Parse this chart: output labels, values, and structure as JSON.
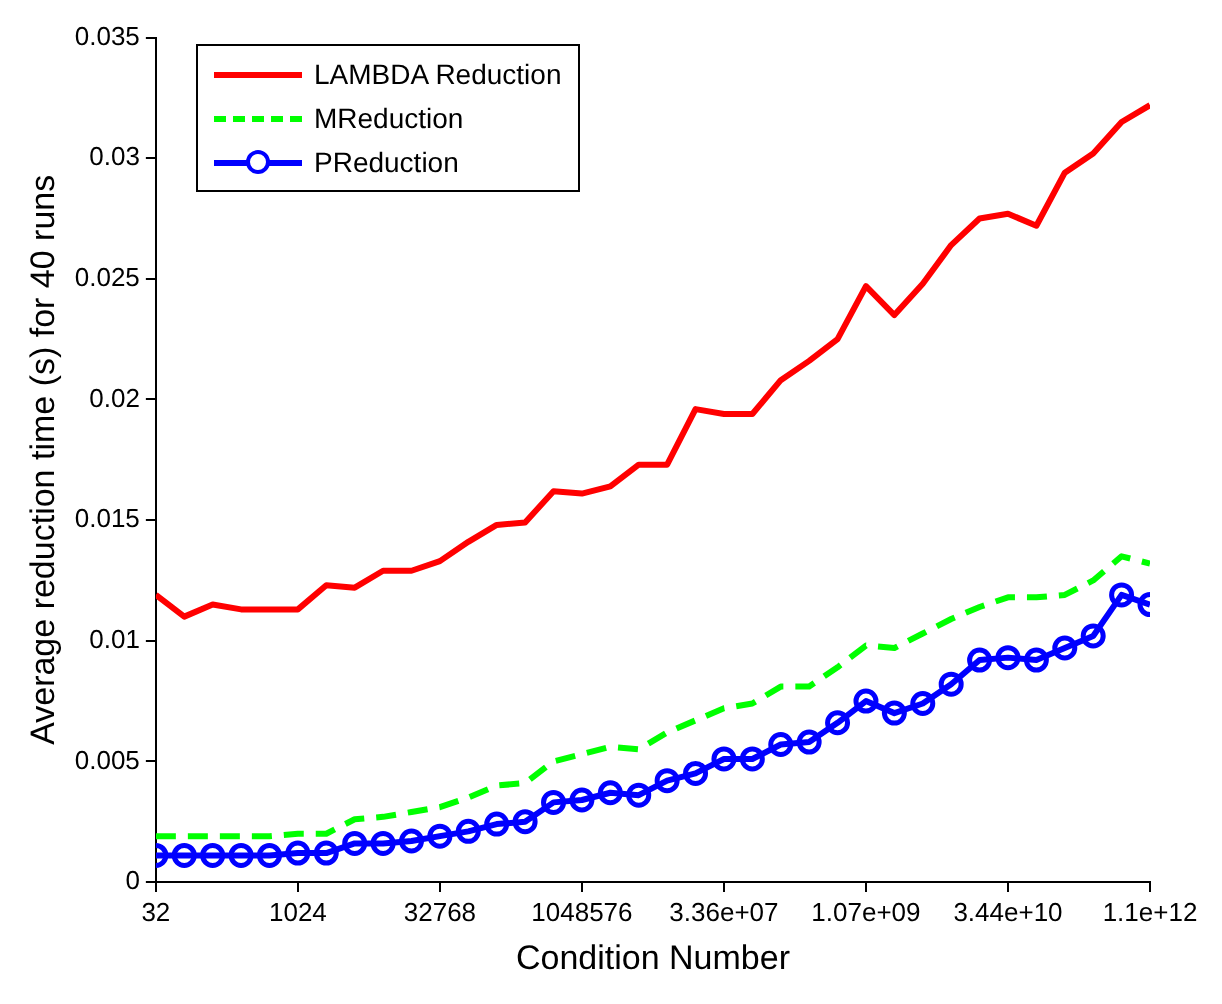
{
  "chart_data": {
    "type": "line",
    "xlabel": "Condition Number",
    "ylabel": "Average reduction time (s) for 40 runs",
    "x": [
      32,
      64,
      128,
      256,
      512,
      1024,
      2048,
      4096,
      8192,
      16384,
      32768,
      65536,
      131072,
      262144,
      524288,
      1048576,
      2097152,
      4194304,
      8388608,
      16777216,
      33554432,
      67108864,
      134217728,
      268435456,
      536870912,
      1073741824,
      2147483648,
      4294967296,
      8589934592,
      17179869184,
      34359738368,
      68719476736,
      137438953472,
      274877906944,
      549755813888,
      1099511627776
    ],
    "series": [
      {
        "name": "LAMBDA Reduction",
        "color": "#ff0000",
        "line_style": "solid",
        "marker": "none",
        "values": [
          0.0119,
          0.011,
          0.0115,
          0.0113,
          0.0113,
          0.0113,
          0.0123,
          0.0122,
          0.0129,
          0.0129,
          0.0133,
          0.0141,
          0.0148,
          0.0149,
          0.0162,
          0.0161,
          0.0164,
          0.0173,
          0.0173,
          0.0196,
          0.0194,
          0.0194,
          0.0208,
          0.0216,
          0.0225,
          0.0247,
          0.0235,
          0.0248,
          0.0264,
          0.0275,
          0.0277,
          0.0272,
          0.0294,
          0.0302,
          0.0315,
          0.0322
        ]
      },
      {
        "name": "MReduction",
        "color": "#00ff00",
        "line_style": "dashed",
        "marker": "none",
        "values": [
          0.0019,
          0.0019,
          0.0019,
          0.0019,
          0.0019,
          0.002,
          0.002,
          0.0026,
          0.0027,
          0.0029,
          0.0031,
          0.0035,
          0.004,
          0.0041,
          0.005,
          0.0053,
          0.0056,
          0.0055,
          0.0062,
          0.0067,
          0.0072,
          0.0074,
          0.0081,
          0.0081,
          0.0089,
          0.0098,
          0.0097,
          0.0103,
          0.0109,
          0.0114,
          0.0118,
          0.0118,
          0.0119,
          0.0125,
          0.0135,
          0.0132
        ]
      },
      {
        "name": "PReduction",
        "color": "#0000ff",
        "line_style": "solid",
        "marker": "circle",
        "values": [
          0.0011,
          0.0011,
          0.0011,
          0.0011,
          0.0011,
          0.0012,
          0.0012,
          0.0016,
          0.0016,
          0.0017,
          0.0019,
          0.0021,
          0.0024,
          0.0025,
          0.0033,
          0.0034,
          0.0037,
          0.0036,
          0.0042,
          0.0045,
          0.0051,
          0.0051,
          0.0057,
          0.0058,
          0.0066,
          0.0075,
          0.007,
          0.0074,
          0.0082,
          0.0092,
          0.0093,
          0.0092,
          0.0097,
          0.0102,
          0.0119,
          0.0115
        ]
      }
    ],
    "log": "x",
    "xlim": [
      32,
      1099511627776
    ],
    "xticks": [
      32,
      1024,
      32768,
      1048576,
      {
        "value": 33554432,
        "label": "3.36e+07"
      },
      {
        "value": 1073741824,
        "label": "1.07e+09"
      },
      {
        "value": 34359738368,
        "label": "3.44e+10"
      },
      {
        "value": 1099511627776,
        "label": "1.1e+12"
      }
    ],
    "ylim": [
      0,
      0.035
    ],
    "yticks": [
      0,
      0.005,
      0.01,
      0.015,
      0.02,
      0.025,
      0.03,
      0.035
    ],
    "grid": false,
    "legend": "top left"
  }
}
